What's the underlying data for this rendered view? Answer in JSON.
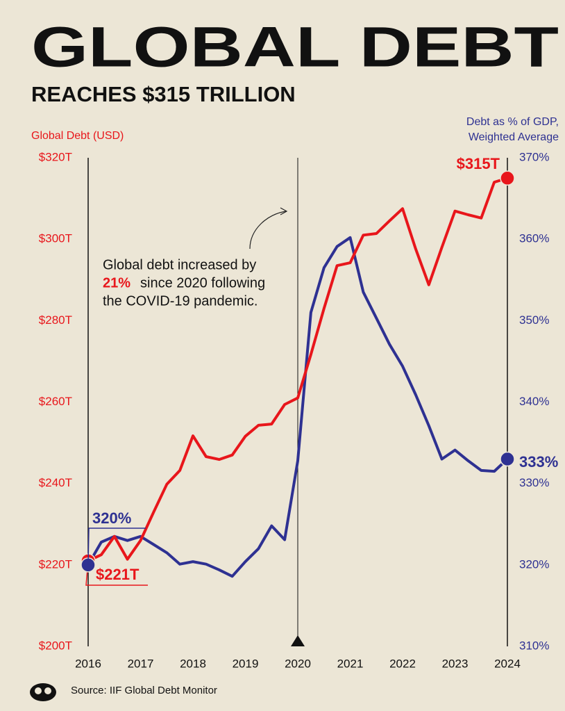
{
  "chart_data": {
    "type": "line",
    "title": "GLOBAL DEBT",
    "subtitle": "REACHES $315 TRILLION",
    "ylabel": "Global Debt (USD)",
    "y2label": [
      "Debt as % of GDP,",
      "Weighted Average"
    ],
    "annotation": [
      "Global debt increased by",
      "21%",
      "since 2020 following",
      "the COVID-19 pandemic."
    ],
    "source": "Source: IIF Global Debt Monitor",
    "x": [
      2016,
      2016.25,
      2016.5,
      2016.75,
      2017,
      2017.25,
      2017.5,
      2017.75,
      2018,
      2018.25,
      2018.5,
      2018.75,
      2019,
      2019.25,
      2019.5,
      2019.75,
      2020,
      2020.25,
      2020.5,
      2020.75,
      2021,
      2021.25,
      2021.5,
      2021.75,
      2022,
      2022.25,
      2022.5,
      2022.75,
      2023,
      2023.25,
      2023.5,
      2023.75,
      2024
    ],
    "xlim": [
      2016,
      2024
    ],
    "xticks": [
      2016,
      2017,
      2018,
      2019,
      2020,
      2021,
      2022,
      2023,
      2024
    ],
    "ylim": [
      200,
      320
    ],
    "yticks": [
      {
        "value": 200,
        "label": "$200T"
      },
      {
        "value": 220,
        "label": "$220T"
      },
      {
        "value": 240,
        "label": "$240T"
      },
      {
        "value": 260,
        "label": "$260T"
      },
      {
        "value": 280,
        "label": "$280T"
      },
      {
        "value": 300,
        "label": "$300T"
      },
      {
        "value": 320,
        "label": "$320T"
      }
    ],
    "y2lim": [
      310,
      370
    ],
    "y2ticks": [
      {
        "value": 310,
        "label": "310%"
      },
      {
        "value": 320,
        "label": "320%"
      },
      {
        "value": 330,
        "label": "330%"
      },
      {
        "value": 340,
        "label": "340%"
      },
      {
        "value": 350,
        "label": "350%"
      },
      {
        "value": 360,
        "label": "360%"
      },
      {
        "value": 370,
        "label": "370%"
      }
    ],
    "series": [
      {
        "name": "Global Debt (USD)",
        "color": "#e8161b",
        "values": [
          221,
          222.5,
          227,
          221.4,
          226,
          233,
          239.8,
          243.2,
          251.7,
          246.6,
          245.9,
          247,
          251.6,
          254.3,
          254.6,
          259.4,
          261,
          271.7,
          283,
          293.5,
          294.2,
          301,
          301.4,
          304.5,
          307.5,
          297.6,
          288.8,
          298,
          306.9,
          306,
          305.2,
          314,
          315
        ],
        "value_labels": [
          "$221T",
          null,
          null,
          null,
          null,
          null,
          null,
          null,
          null,
          null,
          null,
          null,
          null,
          null,
          null,
          null,
          null,
          null,
          null,
          null,
          null,
          null,
          null,
          null,
          null,
          null,
          null,
          null,
          null,
          null,
          null,
          null,
          "$315T"
        ]
      },
      {
        "name": "Debt as % of GDP, Weighted Average",
        "color": "#2e3192",
        "axis": "y2",
        "values": [
          320,
          322.8,
          323.5,
          323,
          323.5,
          322.5,
          321.5,
          320.1,
          320.4,
          320.1,
          319.4,
          318.6,
          320.4,
          322,
          324.8,
          323.1,
          332.8,
          351,
          356.5,
          359.1,
          360.2,
          353.5,
          350.3,
          347.1,
          344.4,
          340.9,
          337.1,
          333,
          334.1,
          332.8,
          331.6,
          331.5,
          333
        ],
        "value_labels": [
          "320%",
          null,
          null,
          null,
          null,
          null,
          null,
          null,
          null,
          null,
          null,
          null,
          null,
          null,
          null,
          null,
          null,
          null,
          null,
          null,
          null,
          null,
          null,
          null,
          null,
          null,
          null,
          null,
          null,
          null,
          null,
          null,
          "333%"
        ]
      }
    ]
  }
}
